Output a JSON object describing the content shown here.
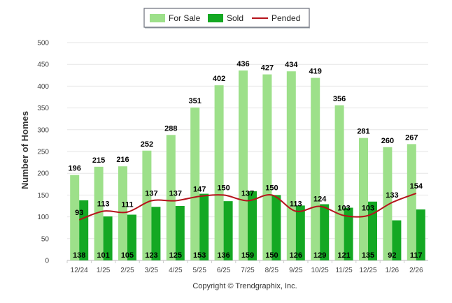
{
  "chart_data": {
    "type": "bar",
    "title": "",
    "xlabel": "",
    "ylabel": "Number of Homes",
    "ylim": [
      0,
      500
    ],
    "yticks": [
      0,
      50,
      100,
      150,
      200,
      250,
      300,
      350,
      400,
      450,
      500
    ],
    "grid": true,
    "legend_position": "top-center",
    "categories": [
      "12/24",
      "1/25",
      "2/25",
      "3/25",
      "4/25",
      "5/25",
      "6/25",
      "7/25",
      "8/25",
      "9/25",
      "10/25",
      "11/25",
      "12/25",
      "1/26",
      "2/26"
    ],
    "series": [
      {
        "name": "For Sale",
        "kind": "bar",
        "color": "#9de08a",
        "values": [
          196,
          215,
          216,
          252,
          288,
          351,
          402,
          436,
          427,
          434,
          419,
          356,
          281,
          260,
          267
        ]
      },
      {
        "name": "Sold",
        "kind": "bar",
        "color": "#14a823",
        "values": [
          138,
          101,
          105,
          123,
          125,
          153,
          136,
          159,
          150,
          126,
          129,
          121,
          135,
          92,
          117
        ]
      },
      {
        "name": "Pended",
        "kind": "line",
        "color": "#b5121b",
        "values": [
          93,
          113,
          111,
          137,
          137,
          147,
          150,
          137,
          150,
          113,
          124,
          103,
          103,
          133,
          154
        ]
      }
    ]
  },
  "footer": "Copyright © Trendgraphix, Inc."
}
